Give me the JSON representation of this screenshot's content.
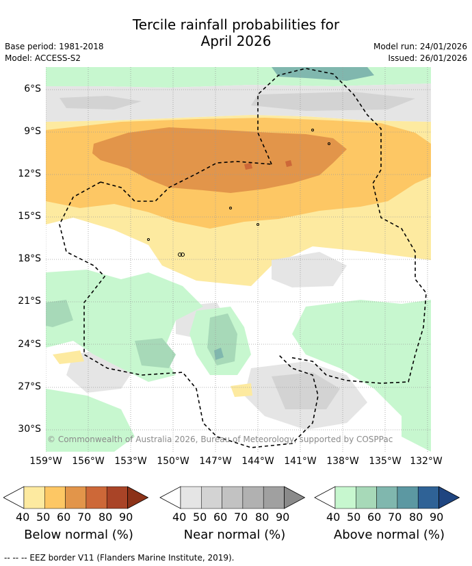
{
  "title_line1": "Tercile rainfall probabilities for",
  "title_line2": "April 2026",
  "base_period": "Base period: 1981-2018",
  "model": "Model: ACCESS-S2",
  "model_run": "Model run: 24/01/2026",
  "issued": "Issued: 26/01/2026",
  "copyright": "© Commonwealth of Australia 2026, Bureau of Meteorology, supported by COSPPac",
  "y_ticks": [
    "6°S",
    "9°S",
    "12°S",
    "15°S",
    "18°S",
    "21°S",
    "24°S",
    "27°S",
    "30°S"
  ],
  "x_ticks": [
    "159°W",
    "156°W",
    "153°W",
    "150°W",
    "147°W",
    "144°W",
    "141°W",
    "138°W",
    "135°W",
    "132°W"
  ],
  "colorbars": {
    "below": {
      "title": "Below normal (%)",
      "labels": [
        "40",
        "50",
        "60",
        "70",
        "80",
        "90"
      ],
      "colors": [
        "#ffffff",
        "#fdeaa0",
        "#fdc764",
        "#e2954a",
        "#cd6838",
        "#a94427",
        "#8c3218"
      ]
    },
    "near": {
      "title": "Near normal (%)",
      "labels": [
        "40",
        "50",
        "60",
        "70",
        "80",
        "90"
      ],
      "colors": [
        "#ffffff",
        "#e5e5e5",
        "#d3d3d3",
        "#c2c2c2",
        "#b1b1b1",
        "#a0a0a0",
        "#8a8a8a"
      ]
    },
    "above": {
      "title": "Above normal (%)",
      "labels": [
        "40",
        "50",
        "60",
        "70",
        "80",
        "90"
      ],
      "colors": [
        "#ffffff",
        "#c7f7cf",
        "#a7d9b8",
        "#80b7ae",
        "#5c98a2",
        "#2f6296",
        "#1f4580"
      ]
    }
  },
  "footnote": "--  --  -- EEZ border V11 (Flanders Marine Institute, 2019)."
}
